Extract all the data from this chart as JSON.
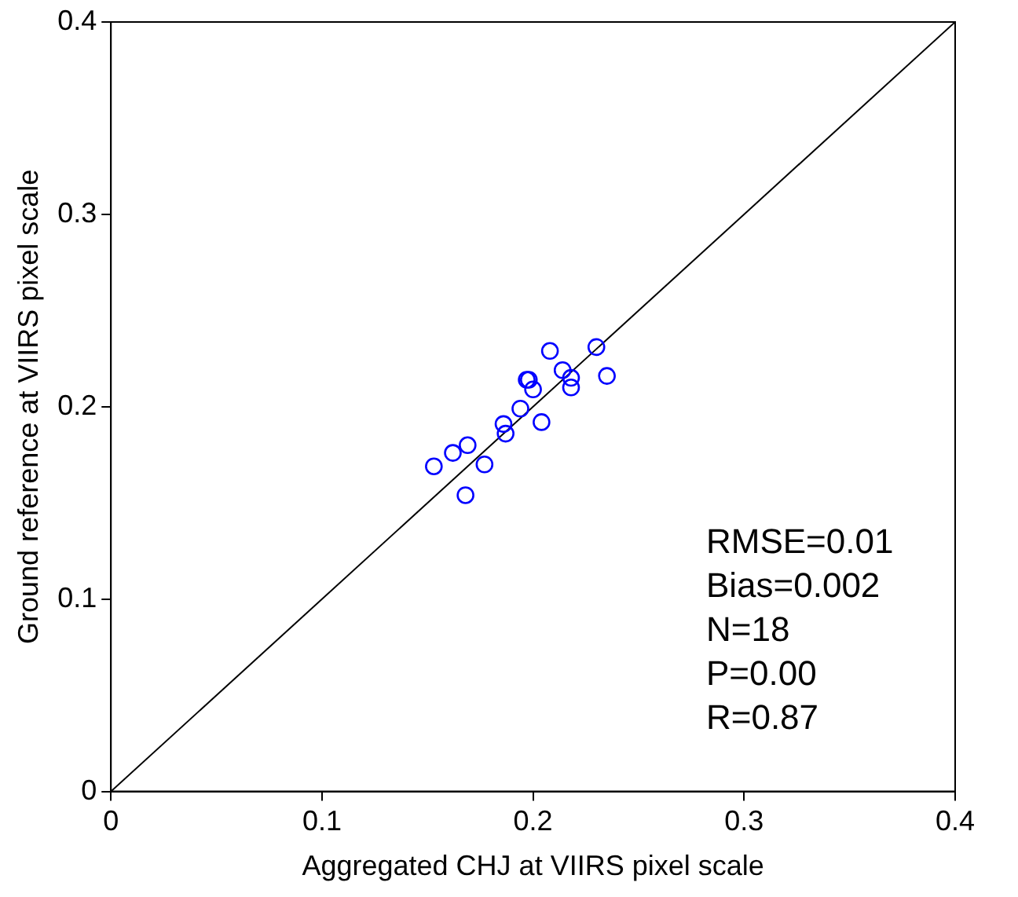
{
  "chart_data": {
    "type": "scatter",
    "xlabel": "Aggregated CHJ at VIIRS pixel scale",
    "ylabel": "Ground reference at VIIRS pixel scale",
    "xlim": [
      0,
      0.4
    ],
    "ylim": [
      0,
      0.4
    ],
    "xticks": [
      0,
      0.1,
      0.2,
      0.3,
      0.4
    ],
    "yticks": [
      0,
      0.1,
      0.2,
      0.3,
      0.4
    ],
    "marker": "circle",
    "annotations": [
      "RMSE=0.01",
      "Bias=0.002",
      "N=18",
      "P=0.00",
      "R=0.87"
    ],
    "series": [
      {
        "color": "#0000ff",
        "x": [
          0.153,
          0.162,
          0.169,
          0.168,
          0.177,
          0.186,
          0.187,
          0.194,
          0.204,
          0.197,
          0.198,
          0.2,
          0.208,
          0.214,
          0.218,
          0.218,
          0.23,
          0.235
        ],
        "values": [
          0.169,
          0.176,
          0.18,
          0.154,
          0.17,
          0.191,
          0.186,
          0.199,
          0.192,
          0.214,
          0.214,
          0.209,
          0.229,
          0.219,
          0.215,
          0.21,
          0.231,
          0.216
        ]
      },
      {
        "type": "line",
        "color": "#000000",
        "marker": "none",
        "line_style": "solid",
        "x": [
          0,
          0.4
        ],
        "values": [
          0,
          0.4
        ]
      }
    ]
  }
}
